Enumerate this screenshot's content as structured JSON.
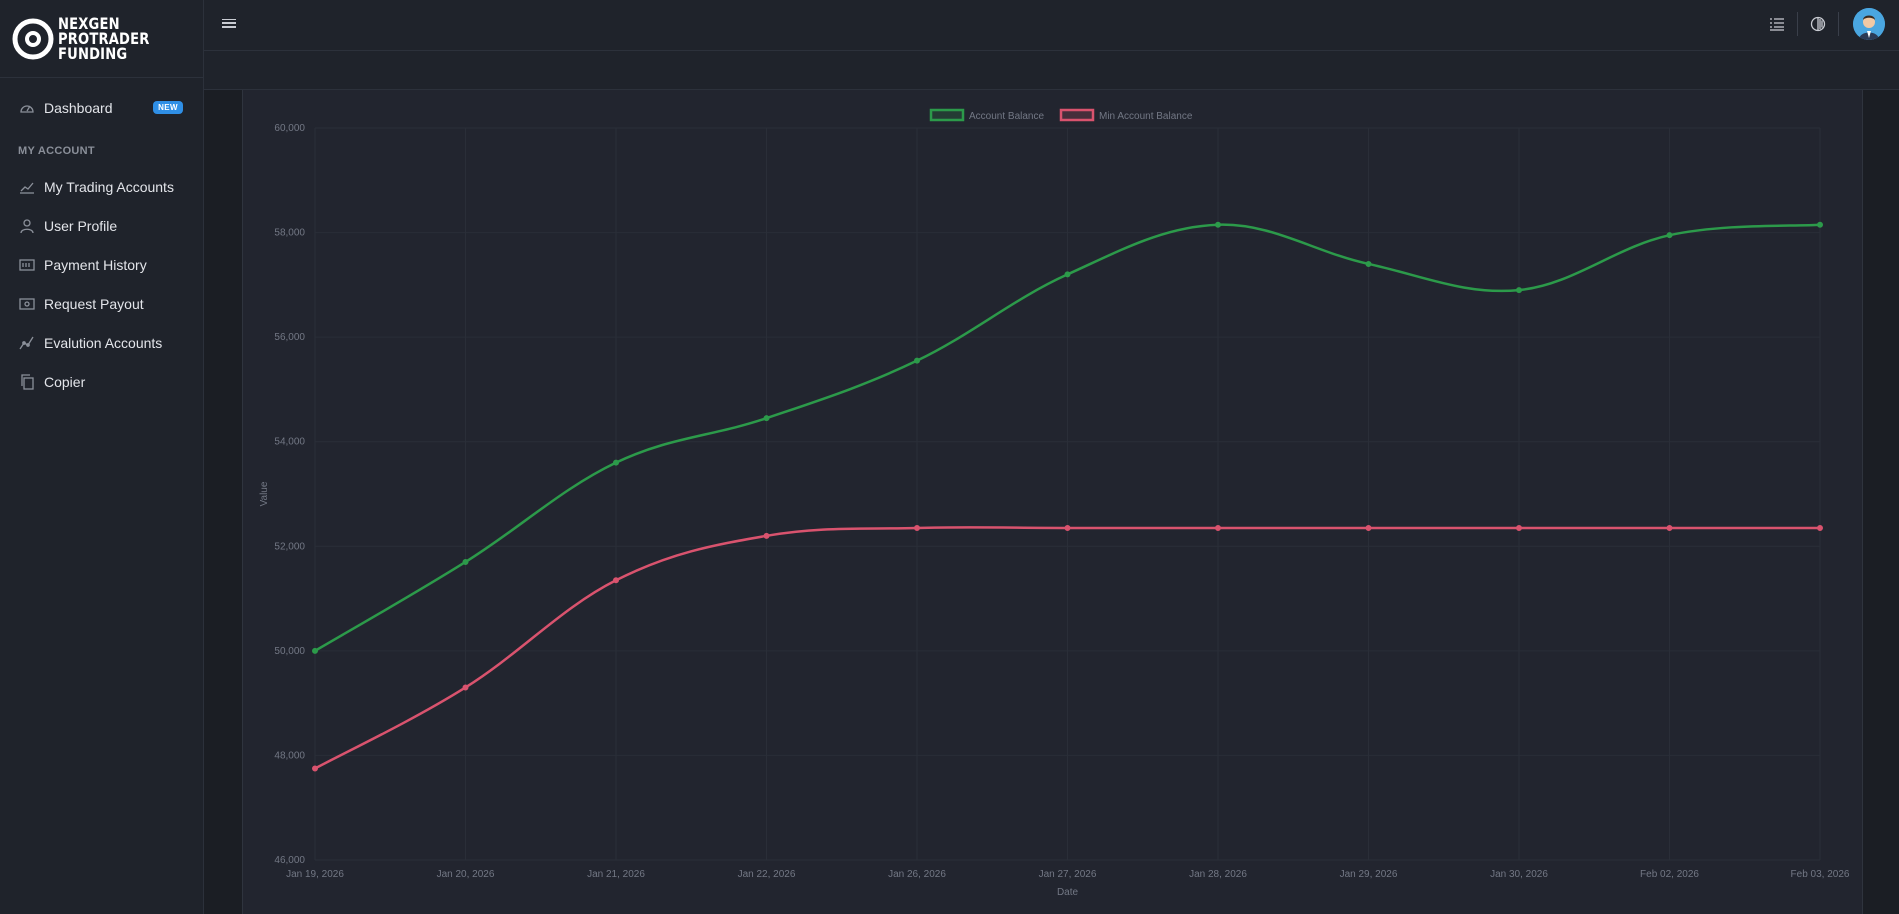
{
  "brand": {
    "line1": "NEXGEN",
    "line2": "PROTRADER",
    "line3": "FUNDING"
  },
  "sidebar": {
    "dashboard": {
      "label": "Dashboard",
      "badge": "NEW",
      "icon": "gauge-icon"
    },
    "section_title": "MY ACCOUNT",
    "items": [
      {
        "label": "My Trading Accounts",
        "icon": "chart-line-icon"
      },
      {
        "label": "User Profile",
        "icon": "user-icon"
      },
      {
        "label": "Payment History",
        "icon": "receipt-icon"
      },
      {
        "label": "Request Payout",
        "icon": "cash-icon"
      },
      {
        "label": "Evalution Accounts",
        "icon": "trend-icon"
      },
      {
        "label": "Copier",
        "icon": "copy-icon"
      }
    ]
  },
  "topbar": {
    "icons": [
      "menu-icon",
      "list-icon",
      "theme-icon",
      "avatar"
    ]
  },
  "chart_data": {
    "type": "line",
    "xlabel": "Date",
    "ylabel": "Value",
    "ylim": [
      46000,
      60000
    ],
    "yticks": [
      "46,000",
      "48,000",
      "50,000",
      "52,000",
      "54,000",
      "56,000",
      "58,000",
      "60,000"
    ],
    "legend_position": "top-center",
    "categories": [
      "Jan 19, 2026",
      "Jan 20, 2026",
      "Jan 21, 2026",
      "Jan 22, 2026",
      "Jan 26, 2026",
      "Jan 27, 2026",
      "Jan 28, 2026",
      "Jan 29, 2026",
      "Jan 30, 2026",
      "Feb 02, 2026",
      "Feb 03, 2026"
    ],
    "series": [
      {
        "name": "Account Balance",
        "color": "#2c9a4a",
        "values": [
          50000,
          51700,
          53600,
          54450,
          55550,
          57200,
          58150,
          57400,
          56900,
          57950,
          58150
        ]
      },
      {
        "name": "Min Account Balance",
        "color": "#d9536e",
        "values": [
          47750,
          49300,
          51350,
          52200,
          52350,
          52350,
          52350,
          52350,
          52350,
          52350,
          52350
        ]
      }
    ]
  }
}
